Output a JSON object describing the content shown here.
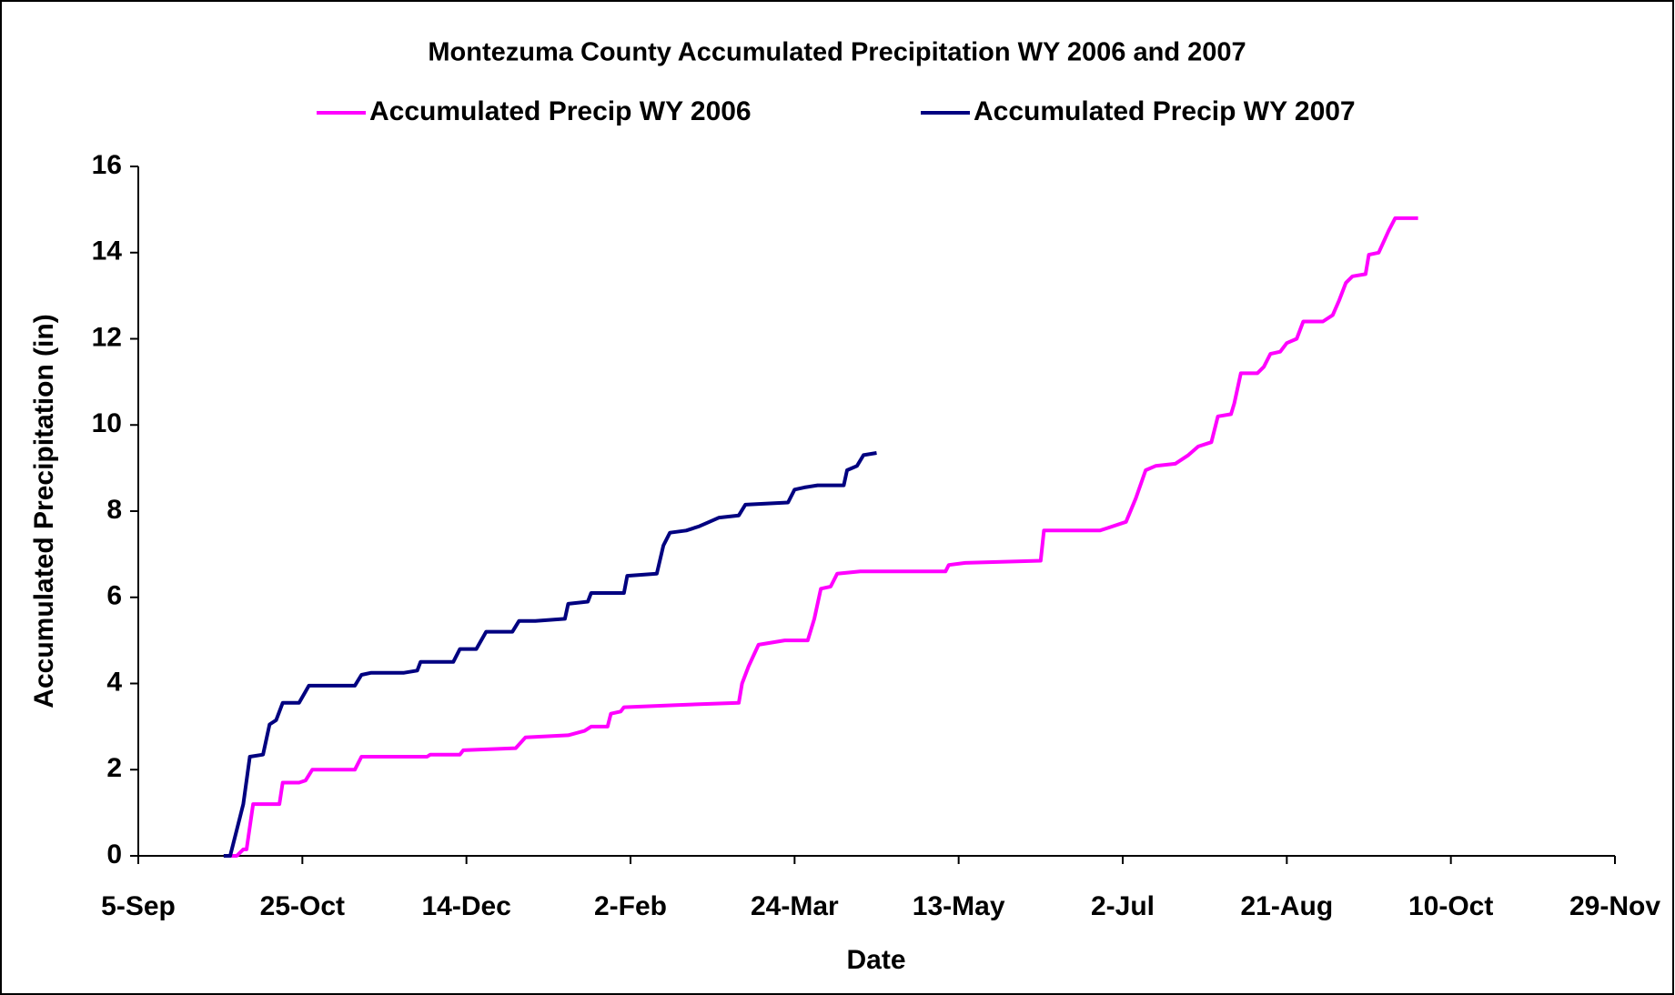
{
  "chart_data": {
    "type": "line",
    "title": "Montezuma County Accumulated Precipitation WY 2006 and 2007",
    "x_label": "Date",
    "y_label": "Accumulated Precipitation (in)",
    "xlim": [
      0,
      450
    ],
    "xticks": [
      {
        "value": 0,
        "label": "5-Sep"
      },
      {
        "value": 50,
        "label": "25-Oct"
      },
      {
        "value": 100,
        "label": "14-Dec"
      },
      {
        "value": 150,
        "label": "2-Feb"
      },
      {
        "value": 200,
        "label": "24-Mar"
      },
      {
        "value": 250,
        "label": "13-May"
      },
      {
        "value": 300,
        "label": "2-Jul"
      },
      {
        "value": 350,
        "label": "21-Aug"
      },
      {
        "value": 400,
        "label": "10-Oct"
      },
      {
        "value": 450,
        "label": "29-Nov"
      }
    ],
    "ylim": [
      0,
      16
    ],
    "yticks": [
      0,
      2,
      4,
      6,
      8,
      10,
      12,
      14,
      16
    ],
    "grid": false,
    "legend": "top",
    "series": [
      {
        "name": "Accumulated Precip WY 2006",
        "color": "#ff00ff",
        "x": [
          27,
          30,
          32,
          33,
          35,
          43,
          44,
          49,
          51,
          53,
          66,
          68,
          88,
          89,
          98,
          99,
          115,
          118,
          131,
          136,
          138,
          143,
          144,
          147,
          148,
          164,
          183,
          184,
          186,
          189,
          197,
          204,
          206,
          208,
          211,
          213,
          220,
          246,
          247,
          252,
          275,
          276,
          293,
          295,
          301,
          304,
          307,
          310,
          316,
          318,
          320,
          323,
          327,
          329,
          333,
          334,
          336,
          341,
          343,
          345,
          348,
          350,
          353,
          355,
          361,
          364,
          366,
          368,
          370,
          374,
          375,
          378,
          381,
          383,
          390
        ],
        "values": [
          0,
          0,
          0.15,
          0.15,
          1.2,
          1.2,
          1.7,
          1.7,
          1.75,
          2.0,
          2.0,
          2.3,
          2.3,
          2.35,
          2.35,
          2.45,
          2.5,
          2.75,
          2.8,
          2.9,
          3.0,
          3.0,
          3.3,
          3.35,
          3.45,
          3.5,
          3.55,
          4.0,
          4.4,
          4.9,
          5.0,
          5.0,
          5.5,
          6.2,
          6.25,
          6.55,
          6.6,
          6.6,
          6.75,
          6.8,
          6.85,
          7.55,
          7.55,
          7.6,
          7.75,
          8.3,
          8.95,
          9.05,
          9.1,
          9.2,
          9.3,
          9.5,
          9.6,
          10.2,
          10.25,
          10.5,
          11.2,
          11.2,
          11.35,
          11.65,
          11.7,
          11.9,
          12.0,
          12.4,
          12.4,
          12.55,
          12.9,
          13.3,
          13.45,
          13.5,
          13.95,
          14.0,
          14.5,
          14.8,
          14.8
        ]
      },
      {
        "name": "Accumulated Precip WY 2007",
        "color": "#000080",
        "x": [
          26,
          28,
          30,
          32,
          34,
          38,
          40,
          42,
          44,
          49,
          52,
          66,
          68,
          71,
          81,
          85,
          86,
          96,
          98,
          103,
          106,
          114,
          116,
          121,
          130,
          131,
          137,
          138,
          148,
          149,
          158,
          160,
          162,
          167,
          171,
          174,
          177,
          183,
          185,
          198,
          200,
          203,
          207,
          215,
          216,
          219,
          221,
          225
        ],
        "values": [
          0,
          0,
          0.6,
          1.2,
          2.3,
          2.35,
          3.05,
          3.15,
          3.55,
          3.55,
          3.95,
          3.95,
          4.2,
          4.25,
          4.25,
          4.3,
          4.5,
          4.5,
          4.8,
          4.8,
          5.2,
          5.2,
          5.45,
          5.45,
          5.5,
          5.85,
          5.9,
          6.1,
          6.1,
          6.5,
          6.55,
          7.2,
          7.5,
          7.55,
          7.65,
          7.75,
          7.85,
          7.9,
          8.15,
          8.2,
          8.5,
          8.55,
          8.6,
          8.6,
          8.95,
          9.05,
          9.3,
          9.35
        ]
      }
    ]
  }
}
